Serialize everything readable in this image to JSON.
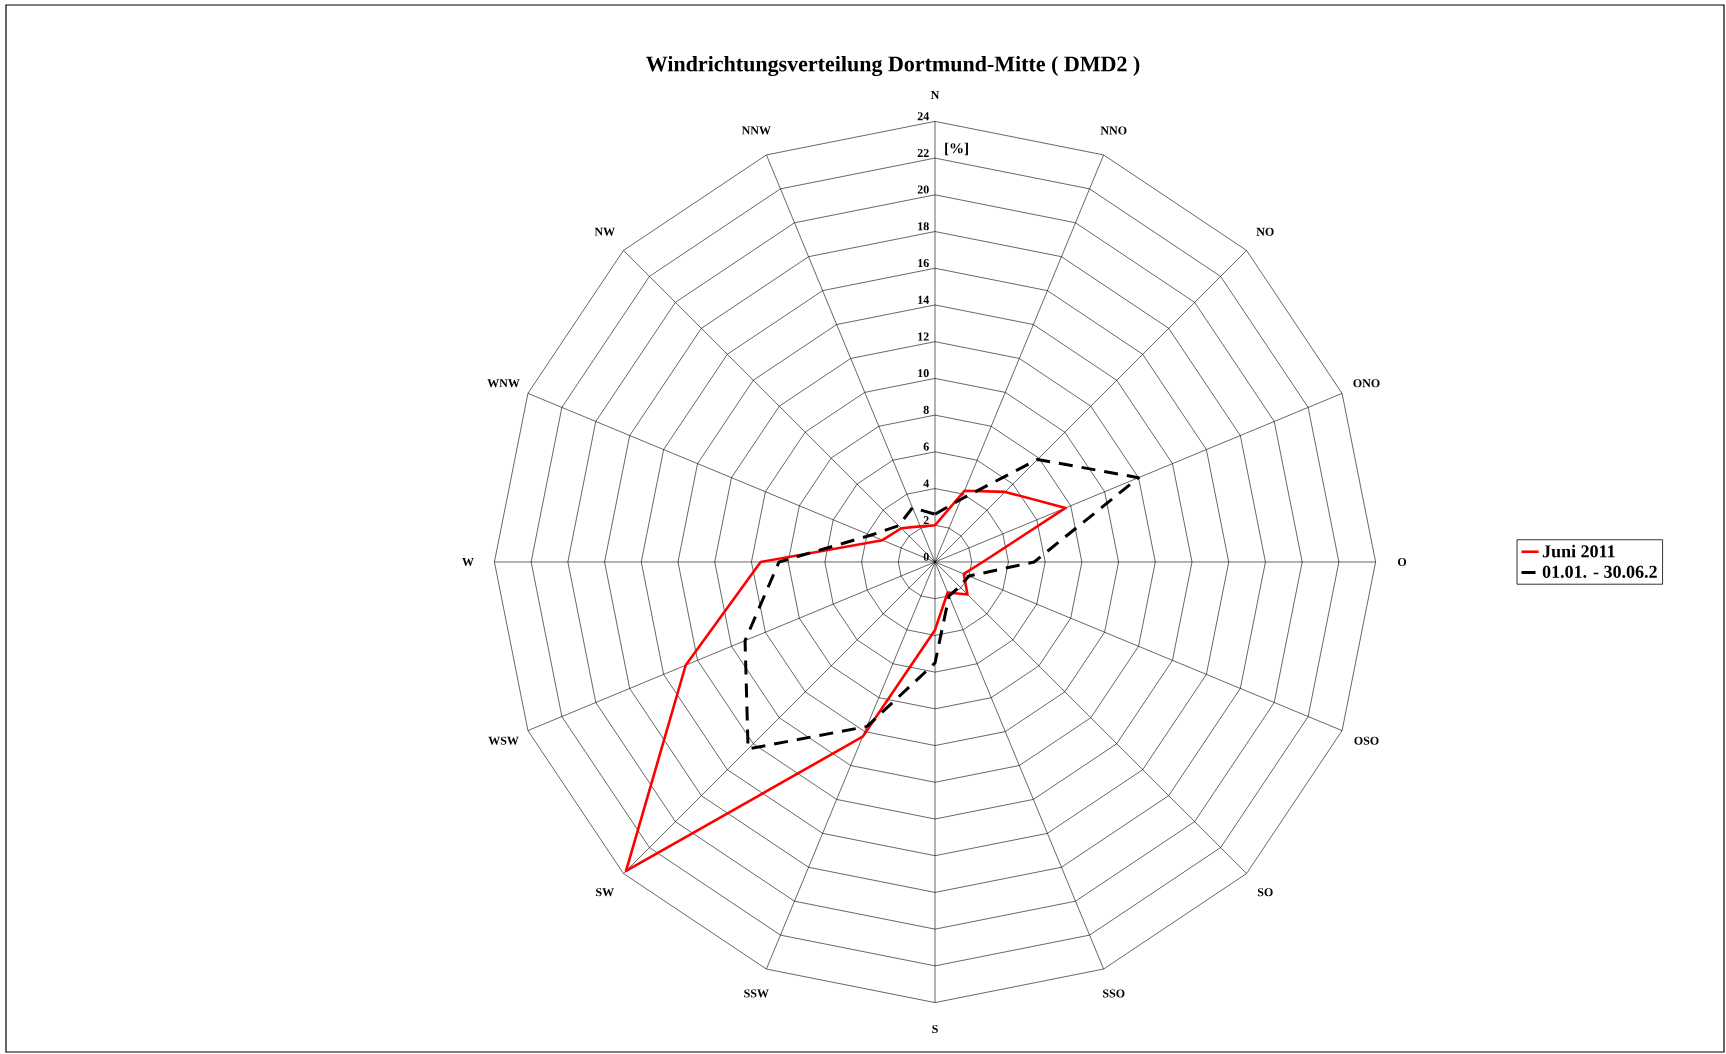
{
  "chart_data": {
    "type": "radar",
    "title": "Windrichtungsverteilung Dortmund-Mitte ( DMD2 )",
    "ylabel": "[%]",
    "categories": [
      "N",
      "NNO",
      "NO",
      "ONO",
      "O",
      "OSO",
      "SO",
      "SSO",
      "S",
      "SSW",
      "SW",
      "WSW",
      "W",
      "WNW",
      "NW",
      "NNW"
    ],
    "ylim": [
      0,
      24
    ],
    "yticks": [
      0,
      2,
      4,
      6,
      8,
      10,
      12,
      14,
      16,
      18,
      20,
      22,
      24
    ],
    "grid": true,
    "legend": "right",
    "marker": "none",
    "series": [
      {
        "name": "Juni 2011",
        "color": "#ff0000",
        "line_style": "solid",
        "values": [
          2.0,
          4.2,
          5.4,
          7.7,
          2.6,
          1.7,
          2.5,
          1.8,
          3.7,
          10.3,
          23.8,
          14.7,
          9.5,
          3.1,
          2.6,
          2.1
        ]
      },
      {
        "name": "01.01. - 30.06.2",
        "color": "#000000",
        "line_style": "dashed",
        "values": [
          2.6,
          3.7,
          7.9,
          12.0,
          5.4,
          2.0,
          1.9,
          2.0,
          5.5,
          9.7,
          14.4,
          11.2,
          8.5,
          3.8,
          2.8,
          3.2
        ]
      }
    ]
  }
}
